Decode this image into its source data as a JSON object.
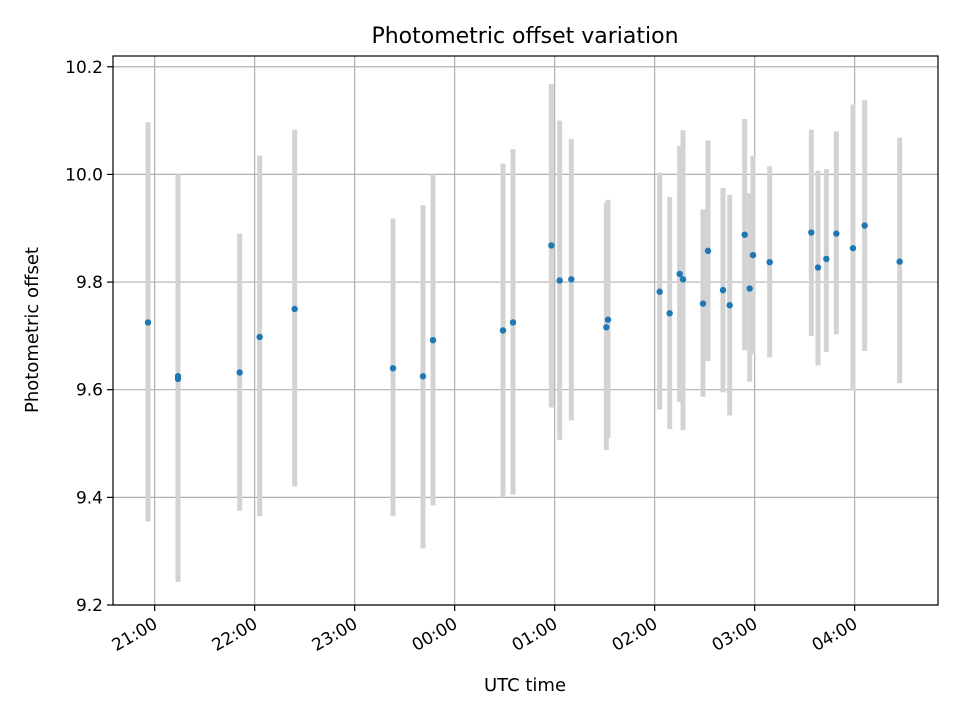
{
  "chart_data": {
    "type": "scatter",
    "title": "Photometric offset variation",
    "xlabel": "UTC time",
    "ylabel": "Photometric offset",
    "x_axis_type": "time",
    "x_unit": "hours UTC (values past 24 fall on the following day)",
    "xlim": [
      "20:35",
      "04:50"
    ],
    "ylim": [
      9.2,
      10.22
    ],
    "x_ticks": [
      "21:00",
      "22:00",
      "23:00",
      "00:00",
      "01:00",
      "02:00",
      "03:00",
      "04:00"
    ],
    "y_ticks": [
      "9.2",
      "9.4",
      "9.6",
      "9.8",
      "10.0",
      "10.2"
    ],
    "grid": true,
    "legend": false,
    "colors": {
      "points": "#1f77b4",
      "error_bars": "#d3d3d3",
      "grid": "#b0b0b0"
    },
    "series": [
      {
        "points": [
          {
            "t": "20:56",
            "y": 9.725,
            "yerr_low": 9.355,
            "yerr_high": 10.097
          },
          {
            "t": "21:14",
            "y": 9.625,
            "yerr_low": 9.243,
            "yerr_high": 10.0
          },
          {
            "t": "21:14",
            "y": 9.62,
            "yerr_low": 9.243,
            "yerr_high": 10.0
          },
          {
            "t": "21:51",
            "y": 9.632,
            "yerr_low": 9.375,
            "yerr_high": 9.89
          },
          {
            "t": "22:03",
            "y": 9.698,
            "yerr_low": 9.365,
            "yerr_high": 10.035
          },
          {
            "t": "22:24",
            "y": 9.75,
            "yerr_low": 9.42,
            "yerr_high": 10.083
          },
          {
            "t": "23:23",
            "y": 9.64,
            "yerr_low": 9.365,
            "yerr_high": 9.918
          },
          {
            "t": "23:41",
            "y": 9.625,
            "yerr_low": 9.305,
            "yerr_high": 9.943
          },
          {
            "t": "23:47",
            "y": 9.692,
            "yerr_low": 9.385,
            "yerr_high": 10.0
          },
          {
            "t": "00:29",
            "y": 9.71,
            "yerr_low": 9.4,
            "yerr_high": 10.02
          },
          {
            "t": "00:35",
            "y": 9.725,
            "yerr_low": 9.405,
            "yerr_high": 10.047
          },
          {
            "t": "00:58",
            "y": 9.868,
            "yerr_low": 9.567,
            "yerr_high": 10.168
          },
          {
            "t": "01:03",
            "y": 9.803,
            "yerr_low": 9.507,
            "yerr_high": 10.1
          },
          {
            "t": "01:10",
            "y": 9.805,
            "yerr_low": 9.543,
            "yerr_high": 10.066
          },
          {
            "t": "01:31",
            "y": 9.716,
            "yerr_low": 9.488,
            "yerr_high": 9.947
          },
          {
            "t": "01:32",
            "y": 9.73,
            "yerr_low": 9.51,
            "yerr_high": 9.953
          },
          {
            "t": "02:03",
            "y": 9.782,
            "yerr_low": 9.563,
            "yerr_high": 10.003
          },
          {
            "t": "02:09",
            "y": 9.742,
            "yerr_low": 9.527,
            "yerr_high": 9.958
          },
          {
            "t": "02:15",
            "y": 9.815,
            "yerr_low": 9.577,
            "yerr_high": 10.053
          },
          {
            "t": "02:17",
            "y": 9.805,
            "yerr_low": 9.525,
            "yerr_high": 10.082
          },
          {
            "t": "02:29",
            "y": 9.76,
            "yerr_low": 9.587,
            "yerr_high": 9.935
          },
          {
            "t": "02:32",
            "y": 9.858,
            "yerr_low": 9.653,
            "yerr_high": 10.063
          },
          {
            "t": "02:41",
            "y": 9.785,
            "yerr_low": 9.595,
            "yerr_high": 9.975
          },
          {
            "t": "02:45",
            "y": 9.757,
            "yerr_low": 9.552,
            "yerr_high": 9.962
          },
          {
            "t": "02:54",
            "y": 9.888,
            "yerr_low": 9.673,
            "yerr_high": 10.103
          },
          {
            "t": "02:57",
            "y": 9.788,
            "yerr_low": 9.615,
            "yerr_high": 9.965
          },
          {
            "t": "02:59",
            "y": 9.85,
            "yerr_low": 9.665,
            "yerr_high": 10.035
          },
          {
            "t": "03:09",
            "y": 9.837,
            "yerr_low": 9.66,
            "yerr_high": 10.015
          },
          {
            "t": "03:34",
            "y": 9.892,
            "yerr_low": 9.7,
            "yerr_high": 10.083
          },
          {
            "t": "03:38",
            "y": 9.827,
            "yerr_low": 9.645,
            "yerr_high": 10.007
          },
          {
            "t": "03:43",
            "y": 9.843,
            "yerr_low": 9.67,
            "yerr_high": 10.01
          },
          {
            "t": "03:49",
            "y": 9.89,
            "yerr_low": 9.703,
            "yerr_high": 10.08
          },
          {
            "t": "03:59",
            "y": 9.863,
            "yerr_low": 9.598,
            "yerr_high": 10.13
          },
          {
            "t": "04:06",
            "y": 9.905,
            "yerr_low": 9.672,
            "yerr_high": 10.138
          },
          {
            "t": "04:27",
            "y": 9.838,
            "yerr_low": 9.612,
            "yerr_high": 10.068
          }
        ]
      }
    ]
  }
}
